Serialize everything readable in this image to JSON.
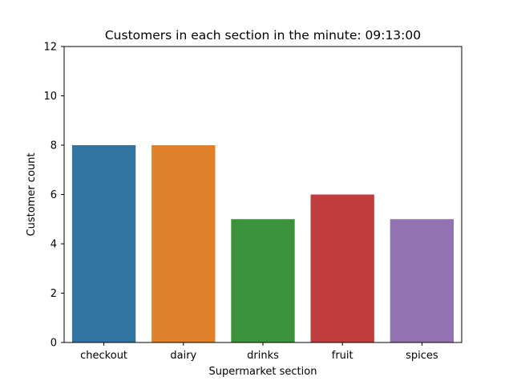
{
  "chart_data": {
    "type": "bar",
    "title": "Customers in each section in the minute: 09:13:00",
    "xlabel": "Supermarket section",
    "ylabel": "Customer count",
    "categories": [
      "checkout",
      "dairy",
      "drinks",
      "fruit",
      "spices"
    ],
    "values": [
      8,
      8,
      5,
      6,
      5
    ],
    "colors": [
      "#3274a1",
      "#e1812c",
      "#3a923a",
      "#c03d3e",
      "#9372b2"
    ],
    "ylim": [
      0,
      12
    ],
    "yticks": [
      0,
      2,
      4,
      6,
      8,
      10,
      12
    ],
    "grid": false,
    "legend": "none"
  }
}
